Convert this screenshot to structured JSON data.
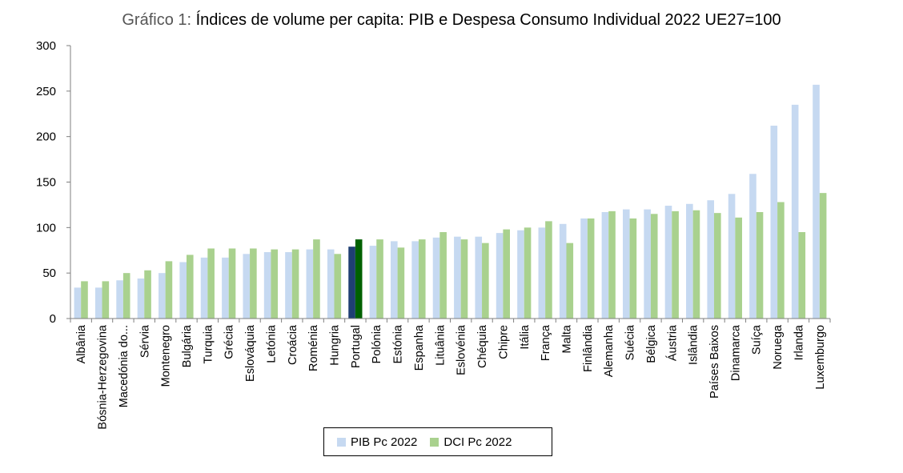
{
  "title": {
    "prefix": "Gráfico 1:",
    "main": "Índices de volume per capita: PIB e Despesa Consumo Individual 2022 UE27=100"
  },
  "colors": {
    "pib": "#c6d9f1",
    "dci": "#a9d18e",
    "pib_highlight": "#1f3f73",
    "dci_highlight": "#006100",
    "axis": "#7f7f7f"
  },
  "chart_data": {
    "type": "bar",
    "title": "Índices de volume per capita: PIB e Despesa Consumo Individual 2022 UE27=100",
    "xlabel": "",
    "ylabel": "",
    "ylim": [
      0,
      300
    ],
    "yticks": [
      0,
      50,
      100,
      150,
      200,
      250,
      300
    ],
    "grid": false,
    "legend_position": "bottom",
    "highlight": "Portugal",
    "categories": [
      "Albânia",
      "Bósnia-Herzegovina",
      "Macedónia do...",
      "Sérvia",
      "Montenegro",
      "Bulgária",
      "Turquia",
      "Grécia",
      "Eslováquia",
      "Letónia",
      "Croácia",
      "Roménia",
      "Hungria",
      "Portugal",
      "Polónia",
      "Estónia",
      "Espanha",
      "Lituânia",
      "Eslovénia",
      "Chéquia",
      "Chipre",
      "Itália",
      "França",
      "Malta",
      "Finlândia",
      "Alemanha",
      "Suécia",
      "Bélgica",
      "Áustria",
      "Islândia",
      "Países Baixos",
      "Dinamarca",
      "Suíça",
      "Noruega",
      "Irlanda",
      "Luxemburgo"
    ],
    "series": [
      {
        "name": "PIB Pc 2022",
        "values": [
          34,
          34,
          42,
          44,
          50,
          62,
          67,
          67,
          71,
          73,
          73,
          76,
          76,
          79,
          80,
          85,
          85,
          89,
          90,
          90,
          94,
          97,
          100,
          104,
          110,
          117,
          120,
          120,
          124,
          126,
          130,
          137,
          159,
          212,
          235,
          257
        ]
      },
      {
        "name": "DCI Pc 2022",
        "values": [
          41,
          41,
          50,
          53,
          63,
          70,
          77,
          77,
          77,
          76,
          76,
          87,
          71,
          87,
          87,
          78,
          87,
          95,
          87,
          83,
          98,
          100,
          107,
          83,
          110,
          118,
          110,
          115,
          118,
          119,
          116,
          111,
          117,
          128,
          95,
          138
        ]
      }
    ]
  }
}
